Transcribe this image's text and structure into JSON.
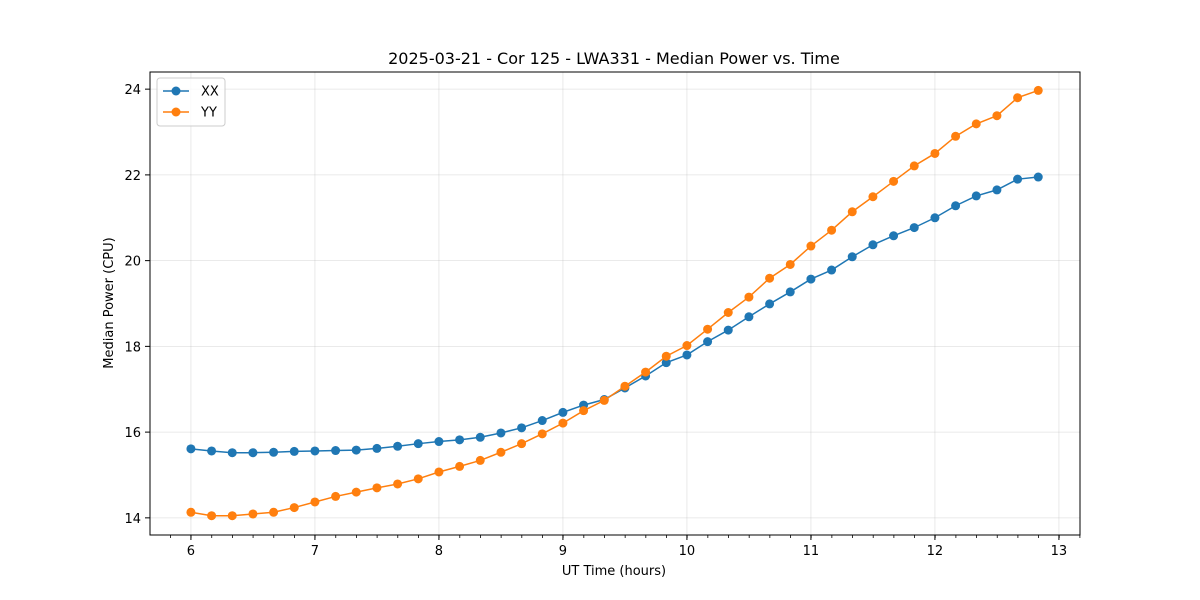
{
  "chart_data": {
    "type": "line",
    "title": "2025-03-21 - Cor 125 - LWA331 - Median Power vs. Time",
    "xlabel": "UT Time (hours)",
    "ylabel": "Median Power (CPU)",
    "xlim": [
      5.67,
      13.17
    ],
    "ylim": [
      13.6,
      24.4
    ],
    "xticks": [
      6,
      7,
      8,
      9,
      10,
      11,
      12,
      13
    ],
    "xticks_minor_step": 0.1667,
    "yticks": [
      14,
      16,
      18,
      20,
      22,
      24
    ],
    "grid": true,
    "legend": "top-left",
    "x": [
      6.0,
      6.1667,
      6.3333,
      6.5,
      6.6667,
      6.8333,
      7.0,
      7.1667,
      7.3333,
      7.5,
      7.6667,
      7.8333,
      8.0,
      8.1667,
      8.3333,
      8.5,
      8.6667,
      8.8333,
      9.0,
      9.1667,
      9.3333,
      9.5,
      9.6667,
      9.8333,
      10.0,
      10.1667,
      10.3333,
      10.5,
      10.6667,
      10.8333,
      11.0,
      11.1667,
      11.3333,
      11.5,
      11.6667,
      11.8333,
      12.0,
      12.1667,
      12.3333,
      12.5,
      12.6667,
      12.8333
    ],
    "series": [
      {
        "name": "XX",
        "color": "#1f77b4",
        "values": [
          15.61,
          15.56,
          15.52,
          15.52,
          15.53,
          15.55,
          15.56,
          15.57,
          15.58,
          15.62,
          15.67,
          15.73,
          15.78,
          15.82,
          15.88,
          15.98,
          16.1,
          16.27,
          16.46,
          16.63,
          16.76,
          17.03,
          17.31,
          17.62,
          17.8,
          18.11,
          18.38,
          18.69,
          18.99,
          19.27,
          19.57,
          19.78,
          20.09,
          20.37,
          20.58,
          20.77,
          21.0,
          21.28,
          21.51,
          21.65,
          21.9,
          21.95
        ]
      },
      {
        "name": "YY",
        "color": "#ff7f0e",
        "values": [
          14.13,
          14.05,
          14.05,
          14.09,
          14.13,
          14.24,
          14.37,
          14.5,
          14.6,
          14.7,
          14.79,
          14.91,
          15.07,
          15.2,
          15.34,
          15.53,
          15.73,
          15.96,
          16.21,
          16.5,
          16.74,
          17.07,
          17.4,
          17.77,
          18.02,
          18.4,
          18.79,
          19.15,
          19.59,
          19.91,
          20.34,
          20.71,
          21.14,
          21.49,
          21.85,
          22.21,
          22.5,
          22.9,
          23.19,
          23.38,
          23.8,
          23.97
        ]
      }
    ]
  }
}
